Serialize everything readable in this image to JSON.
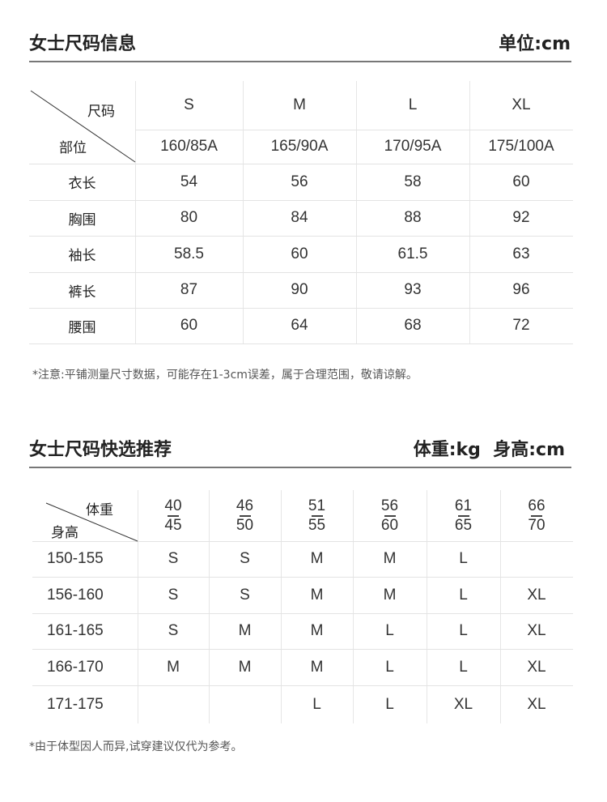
{
  "size_info": {
    "title": "女士尺码信息",
    "unit": "单位:cm",
    "corner": {
      "top": "尺码",
      "bottom": "部位"
    },
    "sizes": [
      "S",
      "M",
      "L",
      "XL"
    ],
    "specs": [
      "160/85A",
      "165/90A",
      "170/95A",
      "175/100A"
    ],
    "rows": [
      {
        "label": "衣长",
        "values": [
          "54",
          "56",
          "58",
          "60"
        ]
      },
      {
        "label": "胸围",
        "values": [
          "80",
          "84",
          "88",
          "92"
        ]
      },
      {
        "label": "袖长",
        "values": [
          "58.5",
          "60",
          "61.5",
          "63"
        ]
      },
      {
        "label": "裤长",
        "values": [
          "87",
          "90",
          "93",
          "96"
        ]
      },
      {
        "label": "腰围",
        "values": [
          "60",
          "64",
          "68",
          "72"
        ]
      }
    ],
    "note": "*注意:平铺测量尺寸数据，可能存在1-3cm误差，属于合理范围，敬请谅解。"
  },
  "recommend": {
    "title": "女士尺码快选推荐",
    "unit": "体重:kg  身高:cm",
    "corner": {
      "top": "体重",
      "bottom": "身高"
    },
    "weights": [
      [
        "40",
        "45"
      ],
      [
        "46",
        "50"
      ],
      [
        "51",
        "55"
      ],
      [
        "56",
        "60"
      ],
      [
        "61",
        "65"
      ],
      [
        "66",
        "70"
      ]
    ],
    "rows": [
      {
        "label": "150-155",
        "values": [
          "S",
          "S",
          "M",
          "M",
          "L",
          ""
        ]
      },
      {
        "label": "156-160",
        "values": [
          "S",
          "S",
          "M",
          "M",
          "L",
          "XL"
        ]
      },
      {
        "label": "161-165",
        "values": [
          "S",
          "M",
          "M",
          "L",
          "L",
          "XL"
        ]
      },
      {
        "label": "166-170",
        "values": [
          "M",
          "M",
          "M",
          "L",
          "L",
          "XL"
        ]
      },
      {
        "label": "171-175",
        "values": [
          "",
          "",
          "L",
          "L",
          "XL",
          "XL"
        ]
      }
    ],
    "note": "*由于体型因人而异,试穿建议仅代为参考。"
  }
}
